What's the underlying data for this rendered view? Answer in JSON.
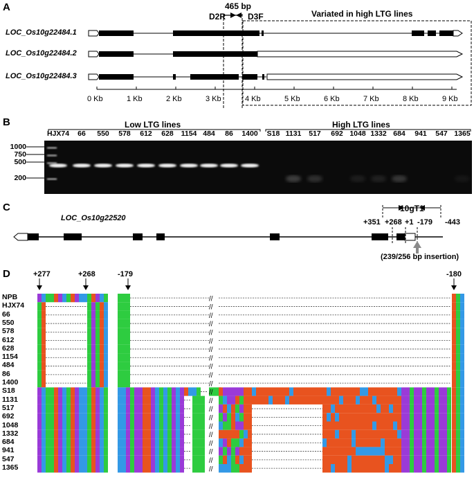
{
  "panel_a": {
    "letter": "A",
    "genes": [
      "LOC_Os10g22484.1",
      "LOC_Os10g22484.2",
      "LOC_Os10g22484.3"
    ],
    "primer_left": "D2R",
    "primer_right": "D3F",
    "amplicon": "465 bp",
    "region_label": "Variated in high LTG lines",
    "scale_ticks": [
      "0 Kb",
      "1 Kb",
      "2 Kb",
      "3 Kb",
      "4 Kb",
      "5 Kb",
      "6 Kb",
      "7 Kb",
      "8 Kb",
      "9 Kb"
    ]
  },
  "panel_b": {
    "letter": "B",
    "group_low": "Low LTG lines",
    "group_high": "High LTG lines",
    "ladder": [
      "1000",
      "750",
      "500",
      "200"
    ],
    "lanes": [
      "HJX74",
      "66",
      "550",
      "578",
      "612",
      "628",
      "1154",
      "484",
      "86",
      "1400",
      "S18",
      "1131",
      "517",
      "692",
      "1048",
      "1332",
      "684",
      "941",
      "547",
      "1365"
    ]
  },
  "panel_c": {
    "letter": "C",
    "gene": "LOC_Os10g22520",
    "region": "10gT1",
    "positions": [
      "+351",
      "+268",
      "+1",
      "-179",
      "-443"
    ],
    "insertion_note": "(239/256 bp insertion)"
  },
  "panel_d": {
    "letter": "D",
    "markers": [
      "+277",
      "+268",
      "-179",
      "-180"
    ],
    "break_symbol": "//",
    "rows": [
      "NPB",
      "HJX74",
      "66",
      "550",
      "578",
      "612",
      "628",
      "1154",
      "484",
      "86",
      "1400",
      "S18",
      "1131",
      "517",
      "692",
      "1048",
      "1332",
      "684",
      "941",
      "547",
      "1365"
    ],
    "nucleotide_colors": {
      "A": "#2ecc40",
      "C": "#3399e6",
      "G": "#9a3ad8",
      "T": "#e8531f"
    }
  }
}
